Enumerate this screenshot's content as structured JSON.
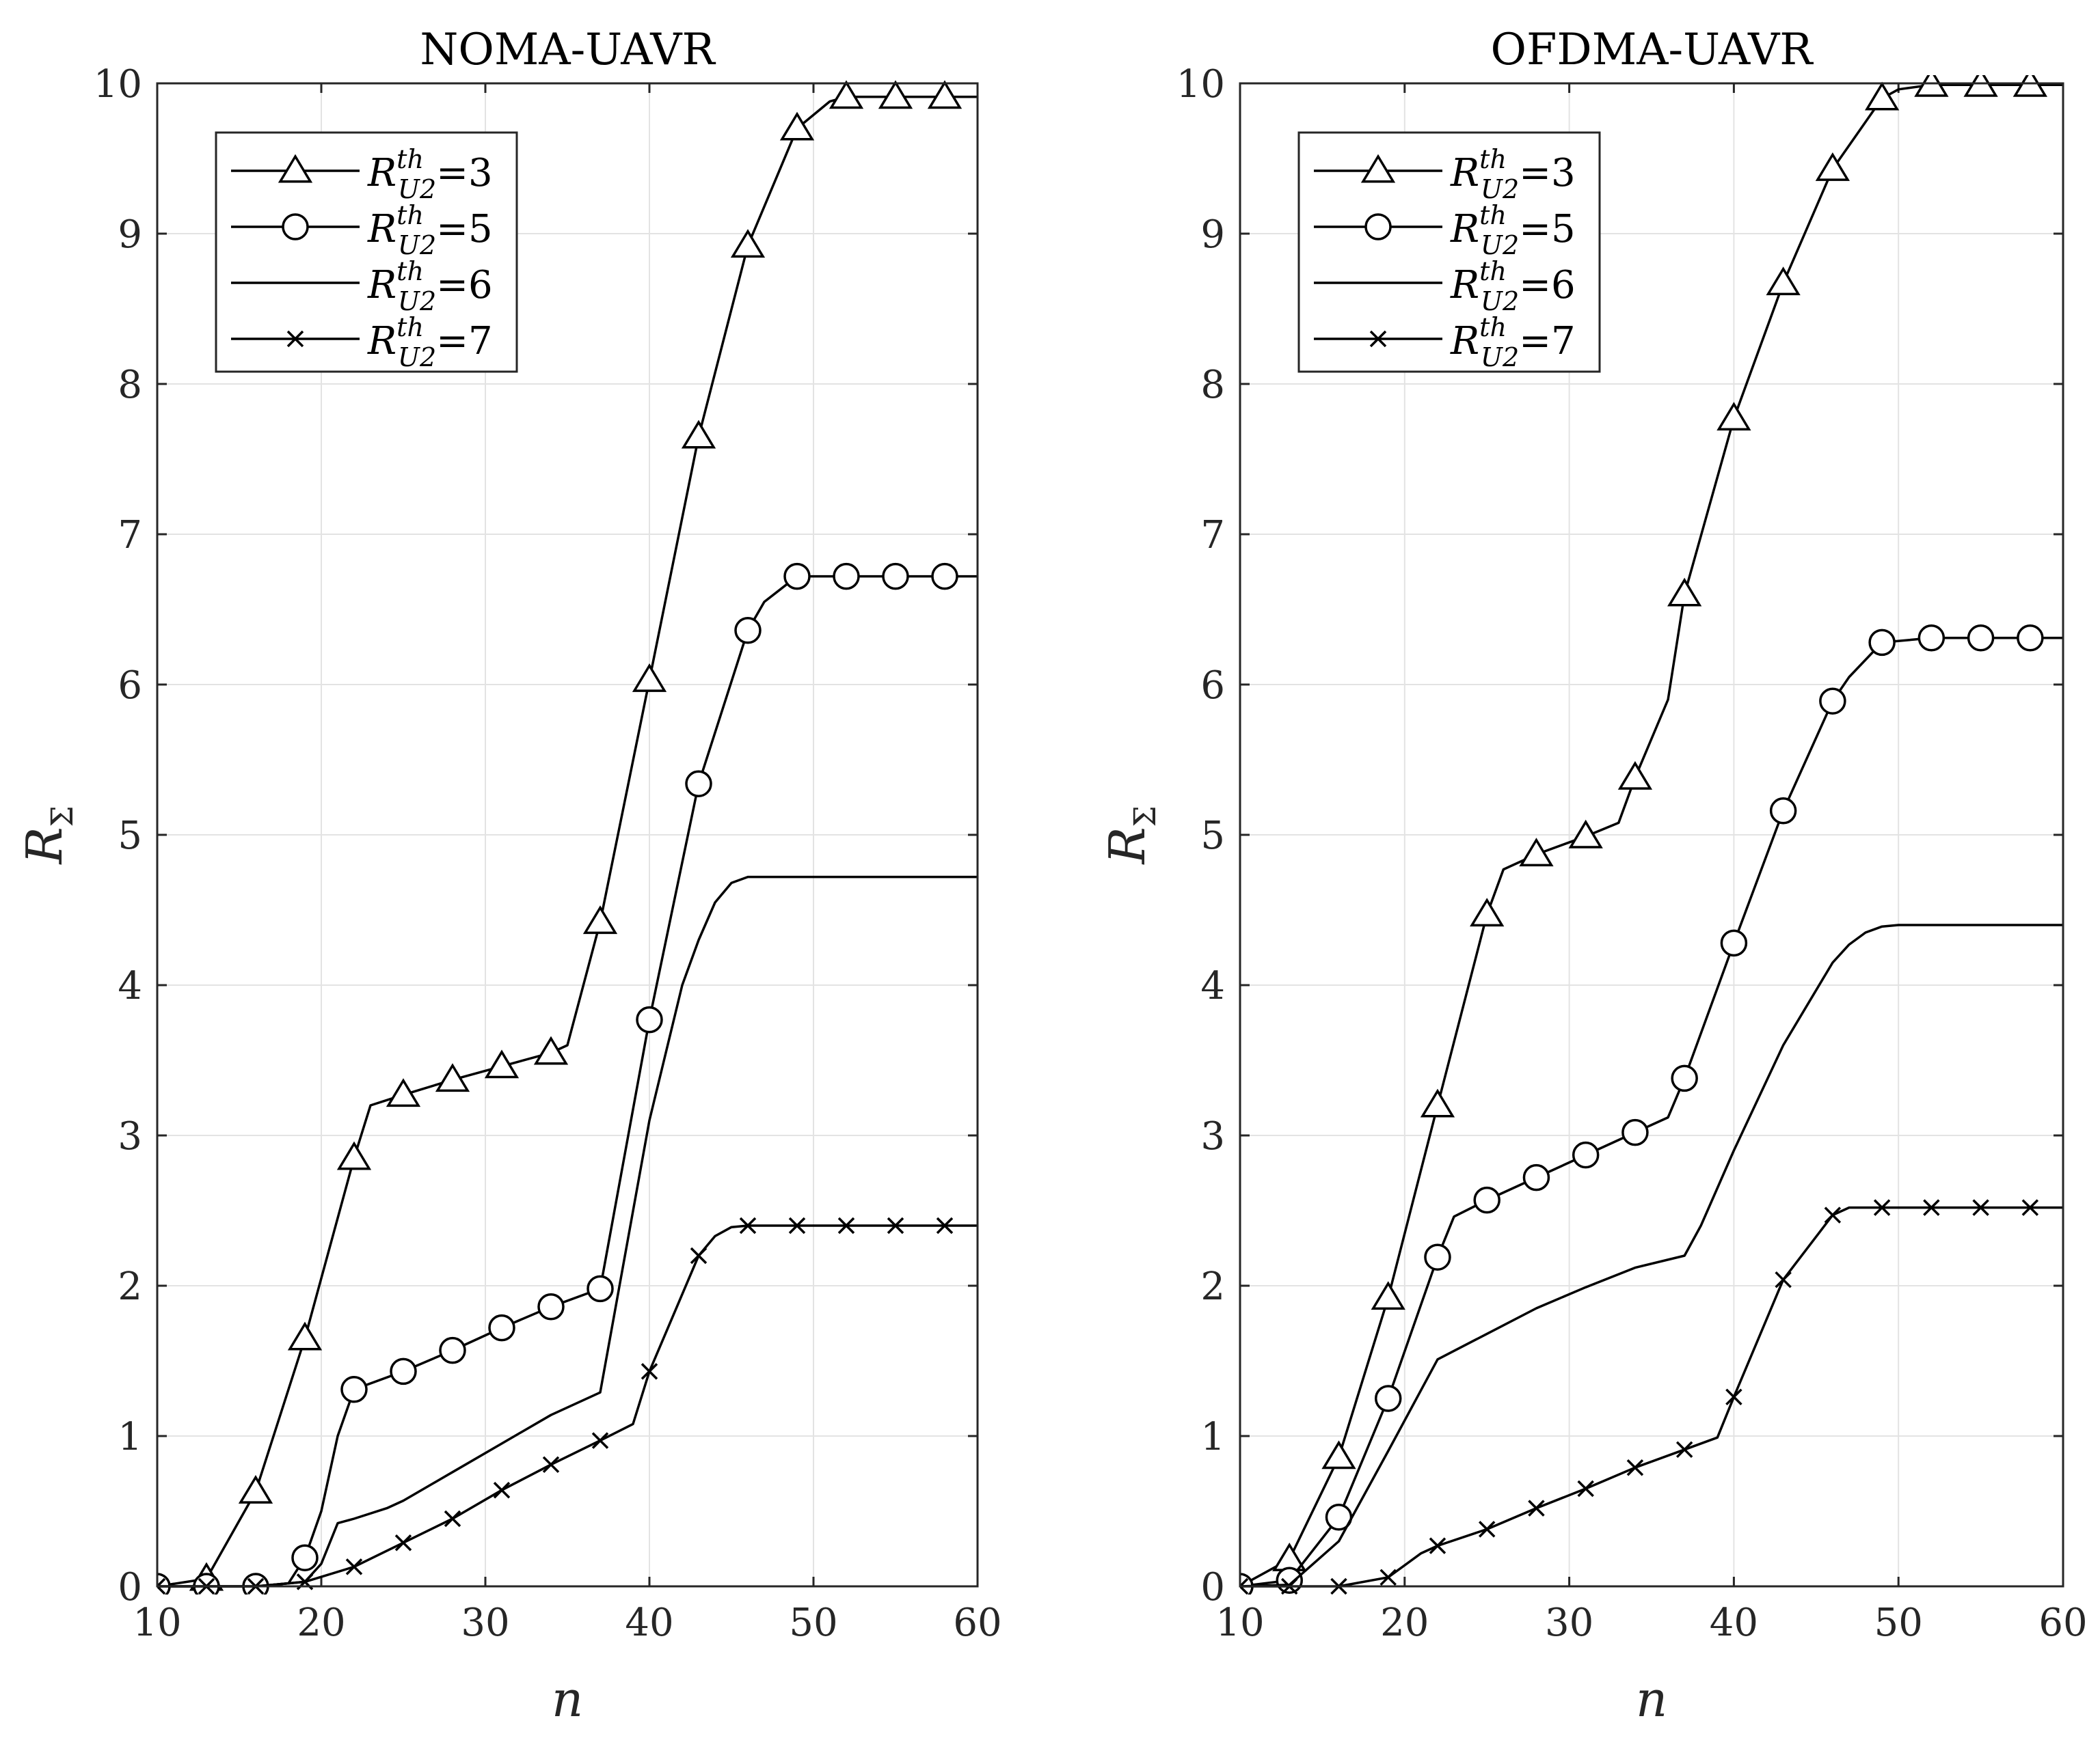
{
  "chart_data": [
    {
      "type": "line",
      "title": "NOMA-UAVR",
      "xlabel": "n",
      "ylabel": "R",
      "ylabel_sub": "Σ",
      "xlim": [
        10,
        60
      ],
      "ylim": [
        0,
        10
      ],
      "xticks": [
        10,
        20,
        30,
        40,
        50,
        60
      ],
      "yticks": [
        0,
        1,
        2,
        3,
        4,
        5,
        6,
        7,
        8,
        9,
        10
      ],
      "grid": true,
      "legend_position": "top-left",
      "series": [
        {
          "name": "R_U2^th=3",
          "legend_main": "R",
          "legend_sup": "th",
          "legend_sub": "U2",
          "legend_val": "=3",
          "marker": "triangle",
          "x": [
            10,
            13,
            16,
            19,
            22,
            23,
            25,
            28,
            31,
            34,
            35,
            37,
            40,
            43,
            46,
            49,
            51,
            52,
            55,
            58,
            60
          ],
          "y": [
            0,
            0.05,
            0.63,
            1.65,
            2.85,
            3.2,
            3.27,
            3.37,
            3.46,
            3.55,
            3.6,
            4.42,
            6.03,
            7.65,
            8.92,
            9.7,
            9.88,
            9.91,
            9.91,
            9.91,
            9.91
          ],
          "marker_x": [
            13,
            16,
            19,
            22,
            25,
            28,
            31,
            34,
            37,
            40,
            43,
            46,
            49,
            52,
            55,
            58
          ]
        },
        {
          "name": "R_U2^th=5",
          "legend_main": "R",
          "legend_sup": "th",
          "legend_sub": "U2",
          "legend_val": "=5",
          "marker": "circle",
          "x": [
            10,
            13,
            16,
            18,
            19,
            20,
            21,
            22,
            25,
            28,
            31,
            34,
            37,
            40,
            43,
            46,
            47,
            49,
            52,
            55,
            58,
            60
          ],
          "y": [
            0,
            0,
            0,
            0.02,
            0.19,
            0.5,
            1.0,
            1.31,
            1.43,
            1.57,
            1.72,
            1.86,
            1.98,
            3.77,
            5.34,
            6.36,
            6.55,
            6.72,
            6.72,
            6.72,
            6.72,
            6.72
          ],
          "marker_x": [
            10,
            13,
            16,
            19,
            22,
            25,
            28,
            31,
            34,
            37,
            40,
            43,
            46,
            49,
            52,
            55,
            58
          ]
        },
        {
          "name": "R_U2^th=6",
          "legend_main": "R",
          "legend_sup": "th",
          "legend_sub": "U2",
          "legend_val": "=6",
          "marker": "none",
          "x": [
            10,
            16,
            19,
            20,
            21,
            22,
            24,
            25,
            28,
            31,
            34,
            36,
            37,
            40,
            42,
            43,
            44,
            45,
            46,
            48,
            50,
            52,
            55,
            60
          ],
          "y": [
            0,
            0,
            0.03,
            0.15,
            0.42,
            0.45,
            0.52,
            0.57,
            0.76,
            0.95,
            1.14,
            1.24,
            1.29,
            3.1,
            4.0,
            4.3,
            4.55,
            4.68,
            4.72,
            4.72,
            4.72,
            4.72,
            4.72,
            4.72
          ],
          "marker_x": []
        },
        {
          "name": "R_U2^th=7",
          "legend_main": "R",
          "legend_sup": "th",
          "legend_sub": "U2",
          "legend_val": "=7",
          "marker": "x",
          "x": [
            10,
            13,
            16,
            19,
            22,
            25,
            28,
            31,
            34,
            37,
            39,
            40,
            43,
            44,
            45,
            46,
            49,
            52,
            55,
            58,
            60
          ],
          "y": [
            0,
            0,
            0,
            0.03,
            0.13,
            0.29,
            0.45,
            0.64,
            0.81,
            0.97,
            1.08,
            1.43,
            2.2,
            2.33,
            2.39,
            2.4,
            2.4,
            2.4,
            2.4,
            2.4,
            2.4
          ],
          "marker_x": [
            10,
            13,
            16,
            19,
            22,
            25,
            28,
            31,
            34,
            37,
            40,
            43,
            46,
            49,
            52,
            55,
            58
          ]
        }
      ]
    },
    {
      "type": "line",
      "title": "OFDMA-UAVR",
      "xlabel": "n",
      "ylabel": "R",
      "ylabel_sub": "Σ",
      "xlim": [
        10,
        60
      ],
      "ylim": [
        0,
        10
      ],
      "xticks": [
        10,
        20,
        30,
        40,
        50,
        60
      ],
      "yticks": [
        0,
        1,
        2,
        3,
        4,
        5,
        6,
        7,
        8,
        9,
        10
      ],
      "grid": true,
      "legend_position": "top-left",
      "series": [
        {
          "name": "R_U2^th=3",
          "legend_main": "R",
          "legend_sup": "th",
          "legend_sub": "U2",
          "legend_val": "=3",
          "marker": "triangle",
          "x": [
            10,
            13,
            16,
            19,
            22,
            25,
            26,
            28,
            31,
            33,
            34,
            36,
            37,
            40,
            43,
            46,
            49,
            50,
            52,
            55,
            58,
            60
          ],
          "y": [
            0,
            0.18,
            0.86,
            1.92,
            3.2,
            4.47,
            4.77,
            4.87,
            4.99,
            5.08,
            5.38,
            5.9,
            6.6,
            7.77,
            8.67,
            9.43,
            9.9,
            9.96,
            9.99,
            9.99,
            9.99,
            9.99
          ],
          "marker_x": [
            13,
            16,
            19,
            22,
            25,
            28,
            31,
            34,
            37,
            40,
            43,
            46,
            49,
            52,
            55,
            58
          ]
        },
        {
          "name": "R_U2^th=5",
          "legend_main": "R",
          "legend_sup": "th",
          "legend_sub": "U2",
          "legend_val": "=5",
          "marker": "circle",
          "x": [
            10,
            13,
            16,
            19,
            22,
            23,
            25,
            28,
            31,
            34,
            36,
            37,
            40,
            43,
            46,
            47,
            49,
            52,
            55,
            58,
            60
          ],
          "y": [
            0,
            0.04,
            0.46,
            1.25,
            2.19,
            2.46,
            2.57,
            2.72,
            2.87,
            3.02,
            3.12,
            3.38,
            4.28,
            5.16,
            5.89,
            6.05,
            6.28,
            6.31,
            6.31,
            6.31,
            6.31
          ],
          "marker_x": [
            10,
            13,
            16,
            19,
            22,
            25,
            28,
            31,
            34,
            37,
            40,
            43,
            46,
            49,
            52,
            55,
            58
          ]
        },
        {
          "name": "R_U2^th=6",
          "legend_main": "R",
          "legend_sup": "th",
          "legend_sub": "U2",
          "legend_val": "=6",
          "marker": "none",
          "x": [
            10,
            13,
            16,
            19,
            22,
            25,
            28,
            31,
            34,
            37,
            38,
            40,
            43,
            46,
            47,
            48,
            49,
            50,
            52,
            55,
            60
          ],
          "y": [
            0,
            0.01,
            0.3,
            0.9,
            1.51,
            1.68,
            1.85,
            1.99,
            2.12,
            2.2,
            2.4,
            2.9,
            3.6,
            4.15,
            4.27,
            4.35,
            4.39,
            4.4,
            4.4,
            4.4,
            4.4
          ],
          "marker_x": []
        },
        {
          "name": "R_U2^th=7",
          "legend_main": "R",
          "legend_sup": "th",
          "legend_sub": "U2",
          "legend_val": "=7",
          "marker": "x",
          "x": [
            10,
            13,
            16,
            19,
            21,
            22,
            25,
            28,
            31,
            34,
            37,
            39,
            40,
            43,
            46,
            47,
            49,
            52,
            55,
            58,
            60
          ],
          "y": [
            0,
            0,
            0,
            0.06,
            0.22,
            0.27,
            0.38,
            0.52,
            0.65,
            0.79,
            0.91,
            0.99,
            1.26,
            2.04,
            2.47,
            2.52,
            2.52,
            2.52,
            2.52,
            2.52,
            2.52
          ],
          "marker_x": [
            10,
            13,
            16,
            19,
            22,
            25,
            28,
            31,
            34,
            37,
            40,
            43,
            46,
            49,
            52,
            55,
            58
          ]
        }
      ]
    }
  ]
}
